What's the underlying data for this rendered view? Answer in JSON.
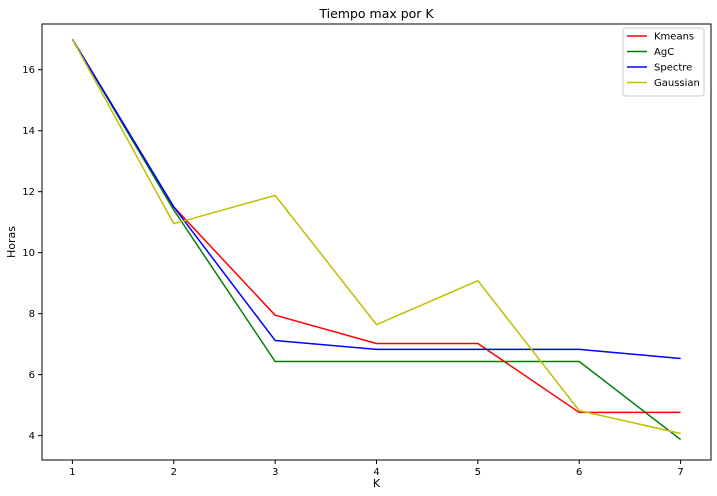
{
  "chart_data": {
    "type": "line",
    "title": "Tiempo max por K",
    "xlabel": "K",
    "ylabel": "Horas",
    "x": [
      1,
      2,
      3,
      4,
      5,
      6,
      7
    ],
    "xlim": [
      0.7,
      7.3
    ],
    "ylim": [
      3.2,
      17.5
    ],
    "yticks": [
      4,
      6,
      8,
      10,
      12,
      14,
      16
    ],
    "xticks": [
      1,
      2,
      3,
      4,
      5,
      6,
      7
    ],
    "grid": false,
    "legend_position": "top-right",
    "series": [
      {
        "name": "Kmeans",
        "color": "#ff0000",
        "values": [
          17.0,
          11.5,
          7.95,
          7.02,
          7.02,
          4.76,
          4.76
        ]
      },
      {
        "name": "AgC",
        "color": "#008000",
        "values": [
          17.0,
          11.4,
          6.43,
          6.43,
          6.43,
          6.43,
          3.87
        ]
      },
      {
        "name": "Spectre",
        "color": "#0000ff",
        "values": [
          17.0,
          11.5,
          7.12,
          6.83,
          6.83,
          6.83,
          6.53
        ]
      },
      {
        "name": "Gaussian",
        "color": "#bfbf00",
        "values": [
          17.0,
          10.95,
          11.88,
          7.64,
          9.08,
          4.82,
          4.07
        ]
      }
    ]
  }
}
